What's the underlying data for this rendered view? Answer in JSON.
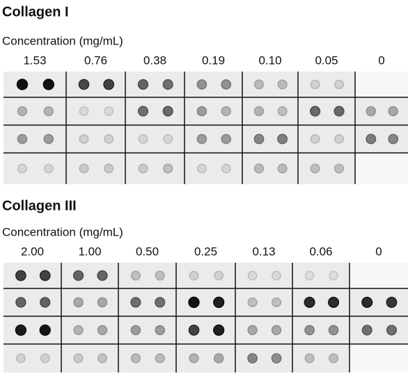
{
  "panels": [
    {
      "title": "Collagen I",
      "axis_label": "Concentration (mg/mL)",
      "concentrations": [
        "1.53",
        "0.76",
        "0.38",
        "0.19",
        "0.10",
        "0.05",
        "0"
      ]
    },
    {
      "title": "Collagen III",
      "axis_label": "Concentration (mg/mL)",
      "concentrations": [
        "2.00",
        "1.00",
        "0.50",
        "0.25",
        "0.13",
        "0.06",
        "0"
      ]
    }
  ]
}
